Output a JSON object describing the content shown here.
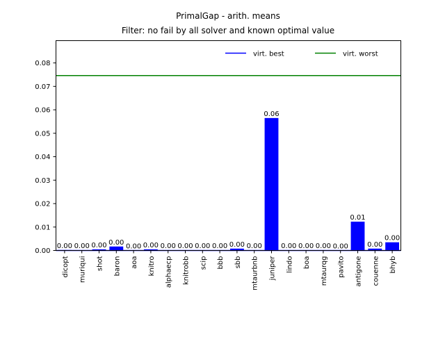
{
  "chart_data": {
    "type": "bar",
    "title": "PrimalGap - arith. means",
    "subtitle": "Filter: no fail by all solver and known optimal value",
    "xlabel": "",
    "ylabel": "",
    "categories": [
      "dicopt",
      "muriqui",
      "shot",
      "baron",
      "aoa",
      "knitro",
      "alphaecp",
      "knitrobb",
      "scip",
      "bbb",
      "sbb",
      "mtaurbnb",
      "juniper",
      "lindo",
      "boa",
      "mtaurqg",
      "pavito",
      "antigone",
      "couenne",
      "bhyb"
    ],
    "values": [
      0.0002,
      0.0001,
      0.0005,
      0.0017,
      0.0,
      0.0005,
      0.0001,
      0.0001,
      0.0001,
      0.0001,
      0.0008,
      0.0001,
      0.0565,
      0.0001,
      0.0001,
      0.0001,
      0.0,
      0.0123,
      0.0008,
      0.0035
    ],
    "data_labels": [
      "0.00",
      "0.00",
      "0.00",
      "0.00",
      "0.00",
      "0.00",
      "0.00",
      "0.00",
      "0.00",
      "0.00",
      "0.00",
      "0.00",
      "0.06",
      "0.00",
      "0.00",
      "0.00",
      "0.00",
      "0.01",
      "0.00",
      "0.00"
    ],
    "bar_color": "#0000ff",
    "reference_lines": [
      {
        "name": "virt. best",
        "value": 0.0,
        "color": "#0000ff"
      },
      {
        "name": "virt. worst",
        "value": 0.0746,
        "color": "#008000"
      }
    ],
    "yticks": [
      "0.00",
      "0.01",
      "0.02",
      "0.03",
      "0.04",
      "0.05",
      "0.06",
      "0.07",
      "0.08"
    ],
    "ylim": [
      0,
      0.0895
    ],
    "grid": false,
    "legend_position": "top-right"
  }
}
